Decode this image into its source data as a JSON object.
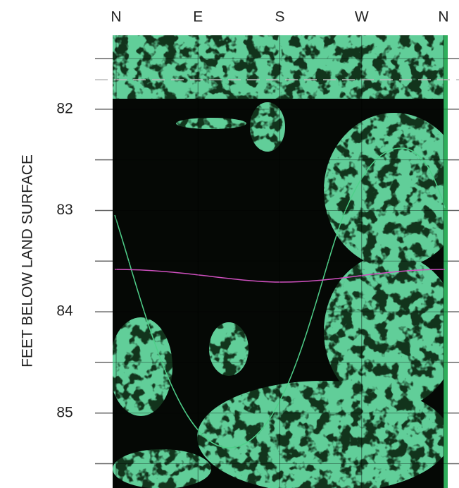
{
  "chart_data": {
    "type": "image-log",
    "categories": [
      "N",
      "E",
      "S",
      "W",
      "N"
    ],
    "ylabel": "FEET BELOW LAND SURFACE",
    "ylim": [
      81.27,
      85.74
    ],
    "yticks": [
      82,
      83,
      84,
      85
    ],
    "minor_yticks": [
      81.5,
      82.5,
      83.5,
      84.5,
      85.5
    ]
  }
}
